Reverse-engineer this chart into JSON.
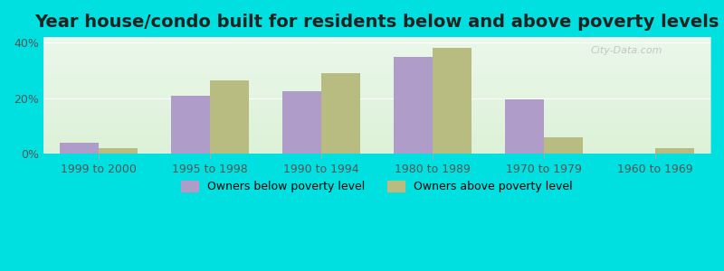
{
  "title": "Year house/condo built for residents below and above poverty levels",
  "categories": [
    "1999 to 2000",
    "1995 to 1998",
    "1990 to 1994",
    "1980 to 1989",
    "1970 to 1979",
    "1960 to 1969"
  ],
  "below_poverty": [
    4.0,
    21.0,
    22.5,
    35.0,
    19.5,
    0.0
  ],
  "above_poverty": [
    2.0,
    26.5,
    29.0,
    38.0,
    6.0,
    2.0
  ],
  "below_color": "#b09cc8",
  "above_color": "#b8bc80",
  "background_color": "#e4f5e4",
  "border_color": "#00e0e0",
  "ylim": [
    0,
    42
  ],
  "yticks": [
    0,
    20,
    40
  ],
  "ytick_labels": [
    "0%",
    "20%",
    "40%"
  ],
  "bar_width": 0.35,
  "legend_below_label": "Owners below poverty level",
  "legend_above_label": "Owners above poverty level",
  "title_fontsize": 14,
  "tick_fontsize": 9,
  "legend_fontsize": 9,
  "watermark": "City-Data.com"
}
